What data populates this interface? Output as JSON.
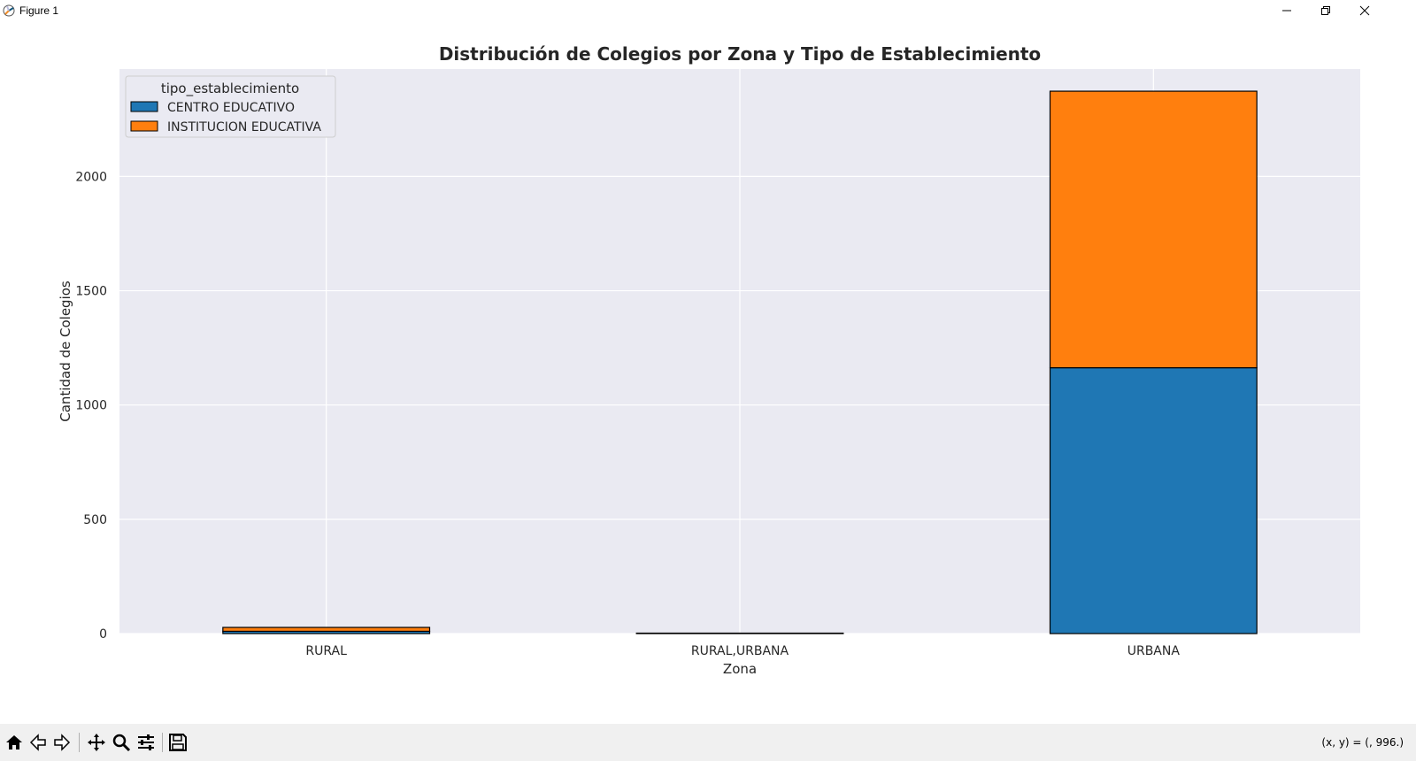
{
  "window": {
    "title": "Figure 1",
    "controls": [
      "minimize",
      "restore",
      "close"
    ]
  },
  "toolbar": {
    "tools": [
      "home-icon",
      "back-icon",
      "forward-icon",
      "pan-icon",
      "zoom-icon",
      "configure-subplots-icon",
      "save-icon"
    ],
    "coords_text": "(x, y) = (, 996.)"
  },
  "chart_data": {
    "type": "bar",
    "stacked": true,
    "title": "Distribución de Colegios por Zona y Tipo de Establecimiento",
    "xlabel": "Zona",
    "ylabel": "Cantidad de Colegios",
    "categories": [
      "RURAL",
      "RURAL,URBANA",
      "URBANA"
    ],
    "series": [
      {
        "name": "CENTRO EDUCATIVO",
        "values": [
          10,
          0,
          1163
        ],
        "color": "#1f77b4"
      },
      {
        "name": "INSTITUCION EDUCATIVA",
        "values": [
          17,
          2,
          1210
        ],
        "color": "#ff7f0e"
      }
    ],
    "ylim": [
      0,
      2470
    ],
    "yticks": [
      0,
      500,
      1000,
      1500,
      2000
    ],
    "legend": {
      "title": "tipo_establecimiento",
      "placement": "top-left"
    },
    "grid": true,
    "style": {
      "plot_bg": "#eaeaf2",
      "grid_color": "#ffffff",
      "edge_color": "#000000"
    }
  }
}
